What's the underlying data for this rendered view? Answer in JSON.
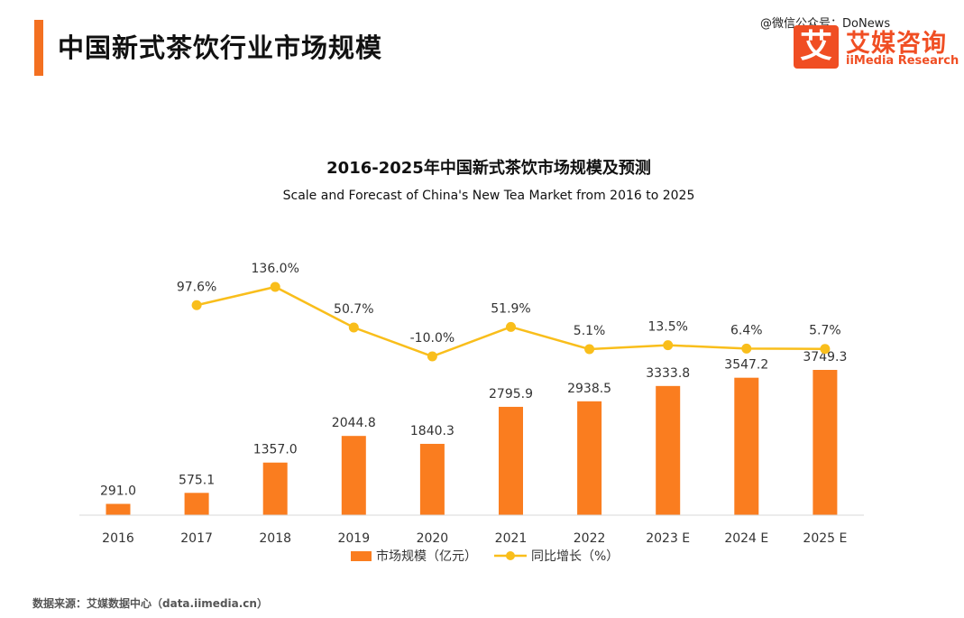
{
  "header": {
    "title": "中国新式茶饮行业市场规模",
    "watermark": "@微信公众号：DoNews",
    "logo_mark": "艾",
    "logo_cn": "艾媒咨询",
    "logo_en": "iiMedia Research"
  },
  "footer": {
    "source": "数据来源：艾媒数据中心（data.iimedia.cn）"
  },
  "colors": {
    "accent": "#f37021",
    "bar": "#fa7d1f",
    "line": "#f9be1b",
    "logo": "#f04e23"
  },
  "chart_data": {
    "type": "bar",
    "title": "2016-2025年中国新式茶饮市场规模及预测",
    "subtitle": "Scale and Forecast of China's New Tea Market from 2016 to 2025",
    "categories": [
      "2016",
      "2017",
      "2018",
      "2019",
      "2020",
      "2021",
      "2022",
      "2023 E",
      "2024 E",
      "2025 E"
    ],
    "series": [
      {
        "name": "市场规模（亿元）",
        "type": "bar",
        "values": [
          291.0,
          575.1,
          1357.0,
          2044.8,
          1840.3,
          2795.9,
          2938.5,
          3333.8,
          3547.2,
          3749.3
        ]
      },
      {
        "name": "同比增长（%）",
        "type": "line",
        "values": [
          null,
          97.6,
          136.0,
          50.7,
          -10.0,
          51.9,
          5.1,
          13.5,
          6.4,
          5.7
        ]
      }
    ],
    "bar_labels": [
      "291.0",
      "575.1",
      "1357.0",
      "2044.8",
      "1840.3",
      "2795.9",
      "2938.5",
      "3333.8",
      "3547.2",
      "3749.3"
    ],
    "line_labels": [
      "",
      "97.6%",
      "136.0%",
      "50.7%",
      "-10.0%",
      "51.9%",
      "5.1%",
      "13.5%",
      "6.4%",
      "5.7%"
    ],
    "legend_position": "bottom",
    "grid": false
  }
}
